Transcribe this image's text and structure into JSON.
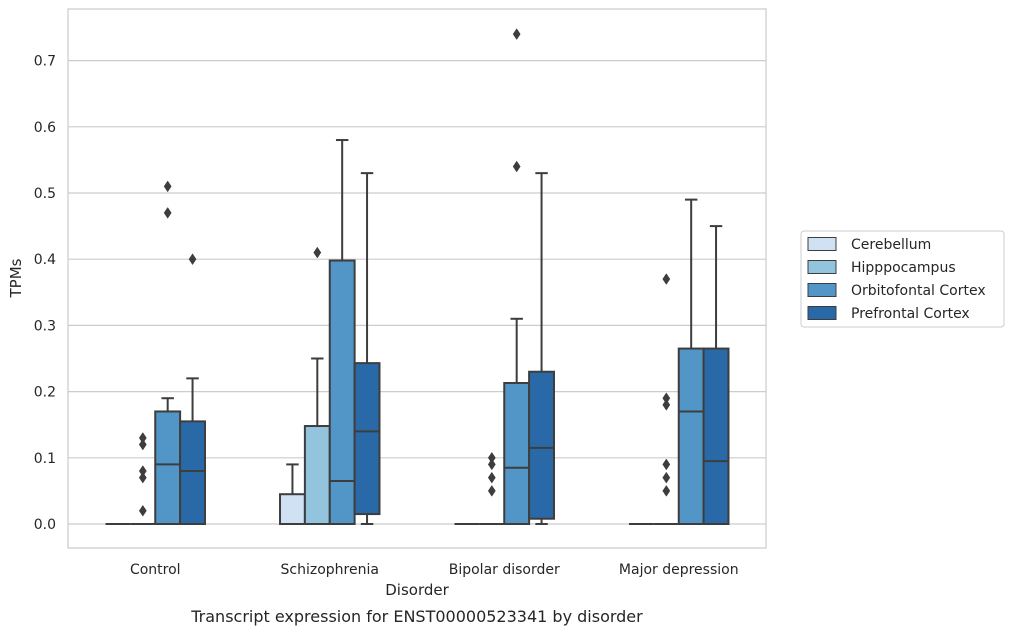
{
  "chart_data": {
    "type": "box",
    "categories": [
      "Control",
      "Schizophrenia",
      "Bipolar disorder",
      "Major depression"
    ],
    "xlabel": "Disorder",
    "ylabel": "TPMs",
    "caption": "Transcript expression for ENST00000523341 by disorder",
    "ylim": [
      -0.035,
      0.775
    ],
    "yticks": [
      0.0,
      0.1,
      0.2,
      0.3,
      0.4,
      0.5,
      0.6,
      0.7
    ],
    "ytick_labels": [
      "0.0",
      "0.1",
      "0.2",
      "0.3",
      "0.4",
      "0.5",
      "0.6",
      "0.7"
    ],
    "grid": "horizontal",
    "legend_position": "right",
    "series": [
      {
        "name": "Cerebellum",
        "color": "#cfe1f2",
        "boxes": [
          {
            "q1": 0.0,
            "median": 0.0,
            "q3": 0.0,
            "whislo": 0.0,
            "whishi": 0.0,
            "fliers": []
          },
          {
            "q1": 0.0,
            "median": 0.0,
            "q3": 0.045,
            "whislo": 0.0,
            "whishi": 0.09,
            "fliers": []
          },
          {
            "q1": 0.0,
            "median": 0.0,
            "q3": 0.0,
            "whislo": 0.0,
            "whishi": 0.0,
            "fliers": []
          },
          {
            "q1": 0.0,
            "median": 0.0,
            "q3": 0.0,
            "whislo": 0.0,
            "whishi": 0.0,
            "fliers": []
          }
        ]
      },
      {
        "name": "Hipppocampus",
        "color": "#93c4de",
        "boxes": [
          {
            "q1": 0.0,
            "median": 0.0,
            "q3": 0.0,
            "whislo": 0.0,
            "whishi": 0.0,
            "fliers": [
              0.02,
              0.07,
              0.08
            ]
          },
          {
            "q1": 0.0,
            "median": 0.0,
            "q3": 0.148,
            "whislo": 0.0,
            "whishi": 0.25,
            "fliers": []
          },
          {
            "q1": 0.0,
            "median": 0.0,
            "q3": 0.0,
            "whislo": 0.0,
            "whishi": 0.0,
            "fliers": [
              0.09
            ]
          },
          {
            "q1": 0.0,
            "median": 0.0,
            "q3": 0.0,
            "whislo": 0.0,
            "whishi": 0.0,
            "fliers": [
              0.05,
              0.07,
              0.09
            ]
          }
        ]
      },
      {
        "name": "Orbitofontal Cortex",
        "color": "#5296c7",
        "boxes": [
          {
            "q1": 0.0,
            "median": 0.09,
            "q3": 0.17,
            "whislo": 0.0,
            "whishi": 0.19,
            "fliers": [
              0.47,
              0.51
            ]
          },
          {
            "q1": 0.0,
            "median": 0.065,
            "q3": 0.398,
            "whislo": 0.0,
            "whishi": 0.58,
            "fliers": []
          },
          {
            "q1": 0.0,
            "median": 0.085,
            "q3": 0.213,
            "whislo": 0.0,
            "whishi": 0.31,
            "fliers": [
              0.54,
              0.74
            ]
          },
          {
            "q1": 0.0,
            "median": 0.17,
            "q3": 0.265,
            "whislo": 0.0,
            "whishi": 0.49,
            "fliers": []
          }
        ]
      },
      {
        "name": "Prefrontal Cortex",
        "color": "#2a69a8",
        "boxes": [
          {
            "q1": 0.0,
            "median": 0.08,
            "q3": 0.155,
            "whislo": 0.0,
            "whishi": 0.22,
            "fliers": [
              0.4
            ]
          },
          {
            "q1": 0.015,
            "median": 0.14,
            "q3": 0.243,
            "whislo": 0.0,
            "whishi": 0.53,
            "fliers": []
          },
          {
            "q1": 0.008,
            "median": 0.115,
            "q3": 0.23,
            "whislo": 0.0,
            "whishi": 0.53,
            "fliers": []
          },
          {
            "q1": 0.0,
            "median": 0.095,
            "q3": 0.265,
            "whislo": 0.0,
            "whishi": 0.45,
            "fliers": []
          }
        ]
      }
    ],
    "extra_fliers": [
      {
        "category": 0,
        "offset_series": 1.5,
        "values": [
          0.12,
          0.13
        ]
      },
      {
        "category": 1,
        "offset_series": 1.5,
        "values": [
          0.41
        ]
      },
      {
        "category": 2,
        "offset_series": 1.5,
        "values": [
          0.05,
          0.07,
          0.1
        ]
      },
      {
        "category": 3,
        "offset_series": 1.5,
        "values": [
          0.18,
          0.19,
          0.37
        ]
      }
    ]
  }
}
